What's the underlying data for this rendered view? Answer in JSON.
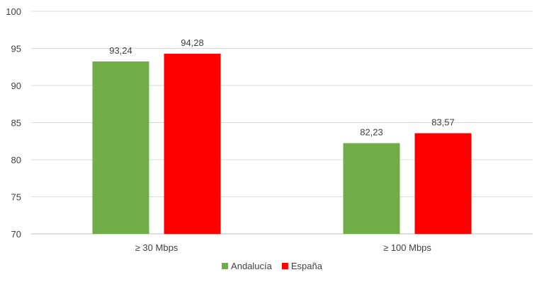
{
  "chart_data": {
    "type": "bar",
    "categories": [
      "≥ 30 Mbps",
      "≥ 100 Mbps"
    ],
    "series": [
      {
        "name": "Andalucía",
        "color": "#70ad47",
        "values": [
          93.24,
          82.23
        ],
        "labels": [
          "93,24",
          "82,23"
        ]
      },
      {
        "name": "España",
        "color": "#ff0000",
        "values": [
          94.28,
          83.57
        ],
        "labels": [
          "94,28",
          "83,57"
        ]
      }
    ],
    "ylim": [
      70,
      100
    ],
    "yticks": [
      70,
      75,
      80,
      85,
      90,
      95,
      100
    ],
    "ytick_labels": [
      "70",
      "75",
      "80",
      "85",
      "90",
      "95",
      "100"
    ],
    "grid": true,
    "legend": "bottom-center",
    "title": "",
    "xlabel": "",
    "ylabel": ""
  }
}
